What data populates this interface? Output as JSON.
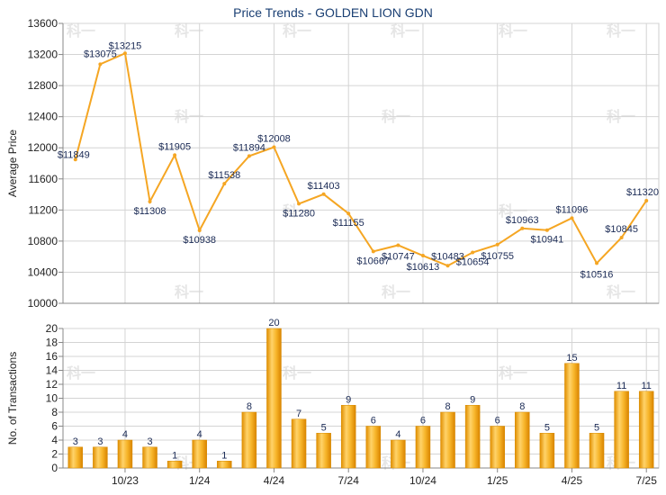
{
  "chart_data": [
    {
      "type": "line",
      "title": "Price Trends - GOLDEN LION GDN",
      "ylabel": "Average Price",
      "ylim": [
        10000,
        13600
      ],
      "yticks": [
        10000,
        10400,
        10800,
        11200,
        11600,
        12000,
        12400,
        12800,
        13200,
        13600
      ],
      "x_tick_labels": [
        "10/23",
        "1/24",
        "4/24",
        "7/24",
        "10/24",
        "1/25",
        "4/25",
        "7/25"
      ],
      "x_tick_positions": [
        2,
        5,
        8,
        11,
        14,
        17,
        20,
        23
      ],
      "grid": true,
      "series": [
        {
          "values": [
            11849,
            13075,
            13215,
            11308,
            11905,
            10938,
            11538,
            11894,
            12008,
            11280,
            11403,
            11155,
            10667,
            10747,
            10613,
            10483,
            10654,
            10755,
            10963,
            10941,
            11096,
            10516,
            10845,
            11320
          ],
          "labels": [
            "$11849",
            "$13075",
            "$13215",
            "$11308",
            "$11905",
            "$10938",
            "$11538",
            "$11894",
            "$12008",
            "$11280",
            "$11403",
            "$11155",
            "$10667",
            "$10747",
            "$10613",
            "$10483",
            "$10654",
            "$10755",
            "$10963",
            "$10941",
            "$11096",
            "$10516",
            "$10845",
            "$11320"
          ],
          "color": "#f5a623"
        }
      ]
    },
    {
      "type": "bar",
      "ylabel": "No. of Transactions",
      "ylim": [
        0,
        20
      ],
      "yticks": [
        0,
        2,
        4,
        6,
        8,
        10,
        12,
        14,
        16,
        18,
        20
      ],
      "x_tick_labels": [
        "10/23",
        "1/24",
        "4/24",
        "7/24",
        "10/24",
        "1/25",
        "4/25",
        "7/25"
      ],
      "x_tick_positions": [
        2,
        5,
        8,
        11,
        14,
        17,
        20,
        23
      ],
      "grid": true,
      "series": [
        {
          "values": [
            3,
            3,
            4,
            3,
            1,
            4,
            1,
            8,
            20,
            7,
            5,
            9,
            6,
            4,
            6,
            8,
            9,
            6,
            8,
            5,
            15,
            5,
            11,
            11
          ],
          "color": "#f5b323"
        }
      ]
    }
  ],
  "watermark": "科一"
}
